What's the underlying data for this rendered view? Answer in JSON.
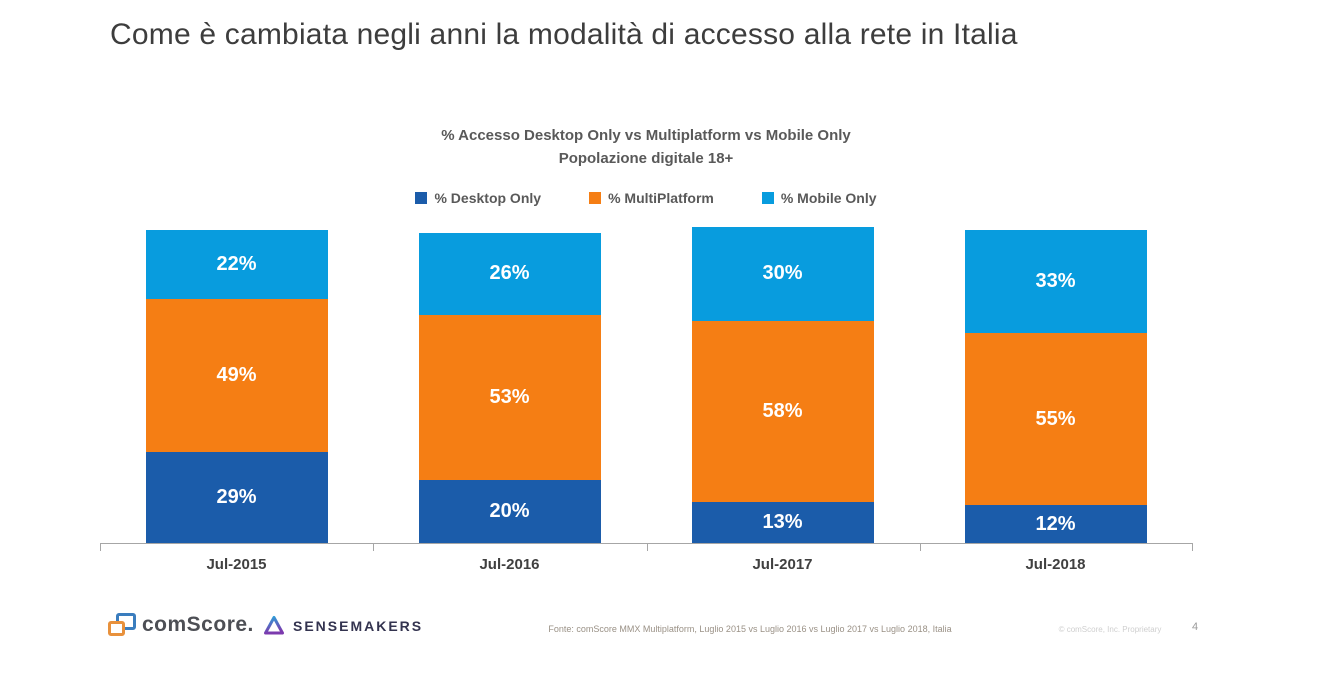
{
  "title": "Come è cambiata negli anni la modalità di accesso alla rete in Italia",
  "chart_data": {
    "type": "bar",
    "stacked": true,
    "title": "% Accesso Desktop Only vs Multiplatform vs Mobile Only",
    "subtitle": "Popolazione digitale 18+",
    "categories": [
      "Jul-2015",
      "Jul-2016",
      "Jul-2017",
      "Jul-2018"
    ],
    "series": [
      {
        "name": "% Desktop Only",
        "color": "#1b5caa",
        "values": [
          29,
          20,
          13,
          12
        ]
      },
      {
        "name": "% MultiPlatform",
        "color": "#f57e14",
        "values": [
          49,
          53,
          58,
          55
        ]
      },
      {
        "name": "% Mobile Only",
        "color": "#089cde",
        "values": [
          22,
          26,
          30,
          33
        ]
      }
    ],
    "value_suffix": "%",
    "ylim": [
      0,
      100
    ],
    "grid": false,
    "legend_position": "top",
    "label_color": "#ffffff",
    "axis_color": "#a6a6a6"
  },
  "footer": {
    "comscore_logo_text": "comScore.",
    "sensemakers_logo_text": "Sensemakers",
    "source": "Fonte: comScore MMX Multiplatform, Luglio 2015 vs Luglio 2016 vs Luglio 2017 vs Luglio 2018, Italia",
    "copyright": "© comScore, Inc. Proprietary",
    "page_number": "4"
  }
}
